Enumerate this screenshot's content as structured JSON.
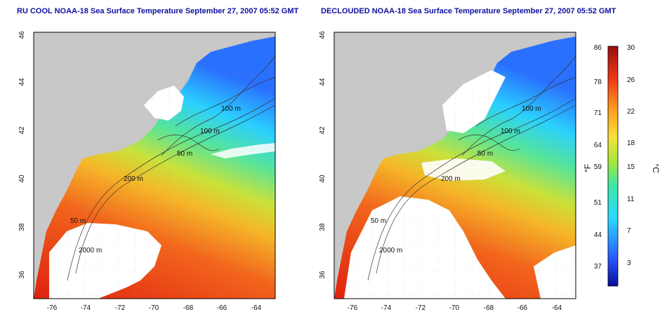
{
  "left_title": "RU COOL NOAA-18 Sea Surface Temperature September 27, 2007 05:52 GMT",
  "right_title": "DECLOUDED NOAA-18 Sea Surface Temperature September 27, 2007 05:52 GMT",
  "x_ticks": [
    "-76",
    "-74",
    "-72",
    "-70",
    "-68",
    "-66",
    "-64"
  ],
  "y_ticks": [
    "46",
    "44",
    "42",
    "40",
    "38",
    "36"
  ],
  "contour_labels": [
    "100 m",
    "100 m",
    "50 m",
    "200 m",
    "50 m",
    "2000 m"
  ],
  "colorbar": {
    "f_ticks": [
      "86",
      "78",
      "71",
      "64",
      "59",
      "51",
      "44",
      "37"
    ],
    "c_ticks": [
      "30",
      "26",
      "22",
      "18",
      "15",
      "11",
      "7",
      "3"
    ],
    "f_unit": "°F",
    "c_unit": "°C"
  },
  "colors": {
    "land": "#c8c8c8",
    "title": "#1010a0",
    "cloud": "#ffffff"
  }
}
